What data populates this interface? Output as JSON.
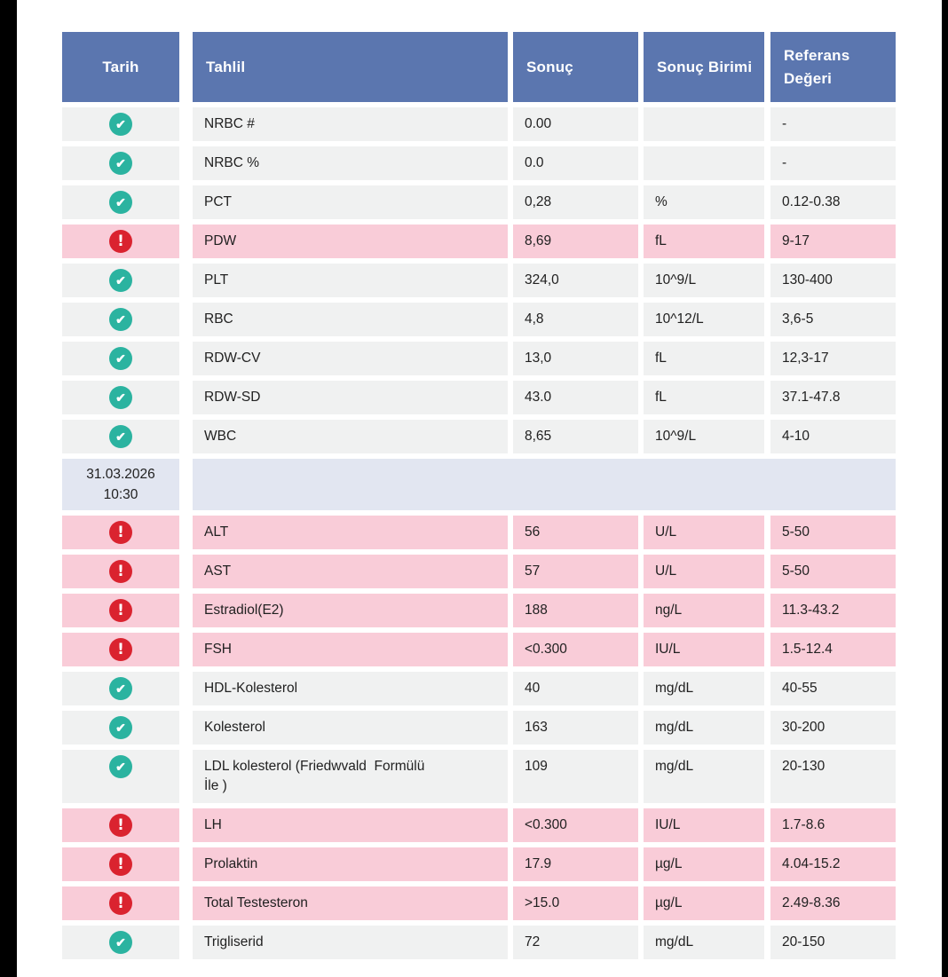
{
  "colors": {
    "page_bg": "#ffffff",
    "edge_bar": "#000000",
    "header_bg": "#5b76af",
    "header_text": "#ffffff",
    "row_normal_bg": "#f0f1f1",
    "row_abnormal_bg": "#f9ccd8",
    "date_row_bg": "#e2e6f1",
    "ok_icon": "#2bb3a0",
    "alert_icon": "#da232f",
    "text": "#212121"
  },
  "table": {
    "header": {
      "tarih": "Tarih",
      "tahlil": "Tahlil",
      "sonuc": "Sonuç",
      "sonuc_birimi": "Sonuç Birimi",
      "referans_degeri": "Referans Değeri"
    },
    "status_legend": {
      "ok": "in-range check icon",
      "alert": "out-of-range exclamation icon"
    },
    "rows": [
      {
        "type": "result",
        "status": "ok",
        "tahlil": "NRBC #",
        "sonuc": "0.00",
        "birim": "",
        "referans": "-"
      },
      {
        "type": "result",
        "status": "ok",
        "tahlil": "NRBC %",
        "sonuc": "0.0",
        "birim": "",
        "referans": "-"
      },
      {
        "type": "result",
        "status": "ok",
        "tahlil": "PCT",
        "sonuc": "0,28",
        "birim": "%",
        "referans": "0.12-0.38"
      },
      {
        "type": "result",
        "status": "alert",
        "tahlil": "PDW",
        "sonuc": "8,69",
        "birim": "fL",
        "referans": "9-17"
      },
      {
        "type": "result",
        "status": "ok",
        "tahlil": "PLT",
        "sonuc": "324,0",
        "birim": "10^9/L",
        "referans": "130-400"
      },
      {
        "type": "result",
        "status": "ok",
        "tahlil": "RBC",
        "sonuc": "4,8",
        "birim": "10^12/L",
        "referans": "3,6-5"
      },
      {
        "type": "result",
        "status": "ok",
        "tahlil": "RDW-CV",
        "sonuc": "13,0",
        "birim": "fL",
        "referans": "12,3-17"
      },
      {
        "type": "result",
        "status": "ok",
        "tahlil": "RDW-SD",
        "sonuc": "43.0",
        "birim": "fL",
        "referans": "37.1-47.8"
      },
      {
        "type": "result",
        "status": "ok",
        "tahlil": "WBC",
        "sonuc": "8,65",
        "birim": "10^9/L",
        "referans": "4-10"
      },
      {
        "type": "date",
        "date": "31.03.2026",
        "time": "10:30"
      },
      {
        "type": "result",
        "status": "alert",
        "tahlil": "ALT",
        "sonuc": "56",
        "birim": "U/L",
        "referans": "5-50"
      },
      {
        "type": "result",
        "status": "alert",
        "tahlil": "AST",
        "sonuc": "57",
        "birim": "U/L",
        "referans": "5-50"
      },
      {
        "type": "result",
        "status": "alert",
        "tahlil": "Estradiol(E2)",
        "sonuc": "188",
        "birim": "ng/L",
        "referans": "11.3-43.2"
      },
      {
        "type": "result",
        "status": "alert",
        "tahlil": "FSH",
        "sonuc": "<0.300",
        "birim": "IU/L",
        "referans": "1.5-12.4"
      },
      {
        "type": "result",
        "status": "ok",
        "tahlil": "HDL-Kolesterol",
        "sonuc": "40",
        "birim": "mg/dL",
        "referans": "40-55"
      },
      {
        "type": "result",
        "status": "ok",
        "tahlil": "Kolesterol",
        "sonuc": "163",
        "birim": "mg/dL",
        "referans": "30-200"
      },
      {
        "type": "result",
        "status": "ok",
        "tahlil": "LDL kolesterol (Friedwvald  Formülü\nİle )",
        "sonuc": "109",
        "birim": "mg/dL",
        "referans": "20-130"
      },
      {
        "type": "result",
        "status": "alert",
        "tahlil": "LH",
        "sonuc": "<0.300",
        "birim": "IU/L",
        "referans": "1.7-8.6"
      },
      {
        "type": "result",
        "status": "alert",
        "tahlil": "Prolaktin",
        "sonuc": "17.9",
        "birim": "µg/L",
        "referans": "4.04-15.2"
      },
      {
        "type": "result",
        "status": "alert",
        "tahlil": "Total Testesteron",
        "sonuc": ">15.0",
        "birim": "µg/L",
        "referans": "2.49-8.36"
      },
      {
        "type": "result",
        "status": "ok",
        "tahlil": "Trigliserid",
        "sonuc": "72",
        "birim": "mg/dL",
        "referans": "20-150"
      }
    ]
  }
}
